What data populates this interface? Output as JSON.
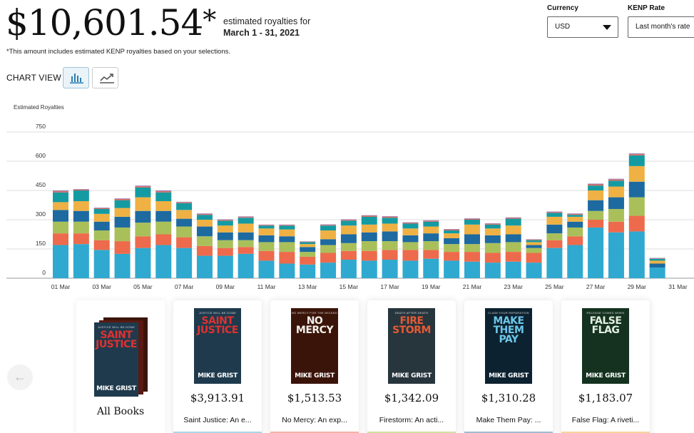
{
  "summary": {
    "amount": "$10,601.54",
    "asterisk": "*",
    "caption_line1": "estimated royalties for",
    "caption_line2": "March 1 - 31, 2021",
    "footnote": "*This amount includes estimated KENP royalties based on your selections."
  },
  "controls": {
    "currency_label": "Currency",
    "currency_value": "USD",
    "kenp_label": "KENP Rate",
    "kenp_value": "Last month's rate"
  },
  "chart_view": {
    "label": "CHART VIEW",
    "active_view": "bar",
    "bar_icon": "bar-chart-icon",
    "line_icon": "line-chart-icon"
  },
  "chart_data": {
    "type": "bar",
    "stacked": true,
    "ylabel": "Estimated Royalties",
    "ylim": [
      0,
      750
    ],
    "yticks": [
      0,
      150,
      300,
      450,
      600,
      750
    ],
    "grid": true,
    "legend": "none",
    "categories": [
      "01 Mar",
      "02 Mar",
      "03 Mar",
      "04 Mar",
      "05 Mar",
      "06 Mar",
      "07 Mar",
      "08 Mar",
      "09 Mar",
      "10 Mar",
      "11 Mar",
      "12 Mar",
      "13 Mar",
      "14 Mar",
      "15 Mar",
      "16 Mar",
      "17 Mar",
      "18 Mar",
      "19 Mar",
      "20 Mar",
      "21 Mar",
      "22 Mar",
      "23 Mar",
      "24 Mar",
      "25 Mar",
      "26 Mar",
      "27 Mar",
      "28 Mar",
      "29 Mar",
      "30 Mar",
      "31 Mar"
    ],
    "xtick_labels": [
      "01 Mar",
      "03 Mar",
      "05 Mar",
      "07 Mar",
      "09 Mar",
      "11 Mar",
      "13 Mar",
      "15 Mar",
      "17 Mar",
      "19 Mar",
      "21 Mar",
      "23 Mar",
      "25 Mar",
      "27 Mar",
      "29 Mar",
      "31 Mar"
    ],
    "series": [
      {
        "color": "#2fa9d0",
        "values": [
          170,
          175,
          145,
          125,
          155,
          170,
          155,
          115,
          115,
          125,
          90,
          75,
          70,
          80,
          95,
          90,
          95,
          90,
          100,
          90,
          85,
          80,
          85,
          80,
          155,
          170,
          260,
          235,
          240,
          55,
          0
        ]
      },
      {
        "color": "#ee6a4c",
        "values": [
          60,
          55,
          50,
          65,
          60,
          55,
          55,
          50,
          40,
          35,
          50,
          60,
          40,
          50,
          45,
          50,
          50,
          55,
          45,
          45,
          50,
          50,
          50,
          50,
          40,
          45,
          40,
          55,
          80,
          0,
          0
        ]
      },
      {
        "color": "#a9c05a",
        "values": [
          60,
          60,
          50,
          70,
          70,
          65,
          55,
          50,
          40,
          35,
          45,
          50,
          25,
          40,
          40,
          50,
          45,
          40,
          45,
          40,
          40,
          50,
          50,
          25,
          35,
          45,
          45,
          65,
          95,
          0,
          0
        ]
      },
      {
        "color": "#1d6aa0",
        "values": [
          60,
          55,
          45,
          55,
          60,
          55,
          40,
          50,
          40,
          40,
          35,
          30,
          25,
          30,
          45,
          45,
          50,
          35,
          40,
          30,
          50,
          40,
          40,
          15,
          45,
          30,
          55,
          60,
          80,
          20,
          0
        ]
      },
      {
        "color": "#efb144",
        "values": [
          40,
          50,
          40,
          45,
          70,
          50,
          45,
          35,
          35,
          45,
          35,
          35,
          15,
          45,
          45,
          40,
          40,
          35,
          35,
          25,
          50,
          35,
          45,
          15,
          40,
          25,
          50,
          55,
          80,
          15,
          0
        ]
      },
      {
        "color": "#149ba2",
        "values": [
          50,
          55,
          25,
          40,
          50,
          45,
          35,
          25,
          25,
          30,
          15,
          20,
          10,
          25,
          25,
          40,
          30,
          25,
          25,
          15,
          25,
          20,
          35,
          10,
          20,
          10,
          25,
          30,
          55,
          10,
          0
        ]
      },
      {
        "color": "#d8685c",
        "values": [
          6,
          4,
          4,
          6,
          6,
          6,
          4,
          4,
          4,
          4,
          3,
          3,
          2,
          3,
          4,
          5,
          5,
          4,
          4,
          4,
          4,
          4,
          4,
          3,
          4,
          4,
          6,
          6,
          6,
          2,
          0
        ]
      },
      {
        "color": "#9a7ab0",
        "values": [
          4,
          3,
          3,
          3,
          4,
          4,
          3,
          3,
          3,
          3,
          2,
          2,
          2,
          3,
          3,
          3,
          3,
          3,
          3,
          3,
          3,
          3,
          3,
          2,
          3,
          3,
          4,
          4,
          4,
          2,
          0
        ]
      }
    ]
  },
  "books": {
    "all_label": "All Books",
    "items": [
      {
        "price": "$3,913.91",
        "title": "Saint Justice: An e...",
        "cover_head": "JUSTICE WILL BE DONE",
        "cover_title": [
          "SAINT",
          "JUSTICE"
        ],
        "cover_author": "MIKE GRIST",
        "cover_bg": "#1f3a4d",
        "cover_title_color": "#e0312f",
        "strip": "#a9d6e8"
      },
      {
        "price": "$1,513.53",
        "title": "No Mercy: An exp...",
        "cover_head": "NO MERCY FOR THE WICKED",
        "cover_title": [
          "NO",
          "MERCY"
        ],
        "cover_author": "MIKE GRIST",
        "cover_bg": "#3b1409",
        "cover_title_color": "#f1efe9",
        "strip": "#f5b3a6"
      },
      {
        "price": "$1,342.09",
        "title": "Firestorm: An acti...",
        "cover_head": "DEATH AFTER DEATH",
        "cover_title": [
          "FIRE",
          "STORM"
        ],
        "cover_author": "MIKE GRIST",
        "cover_bg": "#27353d",
        "cover_title_color": "#e65a34",
        "strip": "#cfe1a4"
      },
      {
        "price": "$1,310.28",
        "title": "Make Them Pay: ...",
        "cover_head": "CLAIM YOUR REPARATION",
        "cover_title": [
          "MAKE",
          "THEM PAY"
        ],
        "cover_author": "MIKE GRIST",
        "cover_bg": "#0d2230",
        "cover_title_color": "#6cc7ea",
        "strip": "#9dbcd2"
      },
      {
        "price": "$1,183.07",
        "title": "False Flag: A riveti...",
        "cover_head": "RELEASE COMES WHEN",
        "cover_title": [
          "FALSE",
          "FLAG"
        ],
        "cover_author": "MIKE GRIST",
        "cover_bg": "#14321f",
        "cover_title_color": "#e4eee0",
        "strip": "#f5d59b"
      }
    ]
  },
  "nav": {
    "prev_icon": "arrow-left-icon",
    "prev_glyph": "←"
  }
}
